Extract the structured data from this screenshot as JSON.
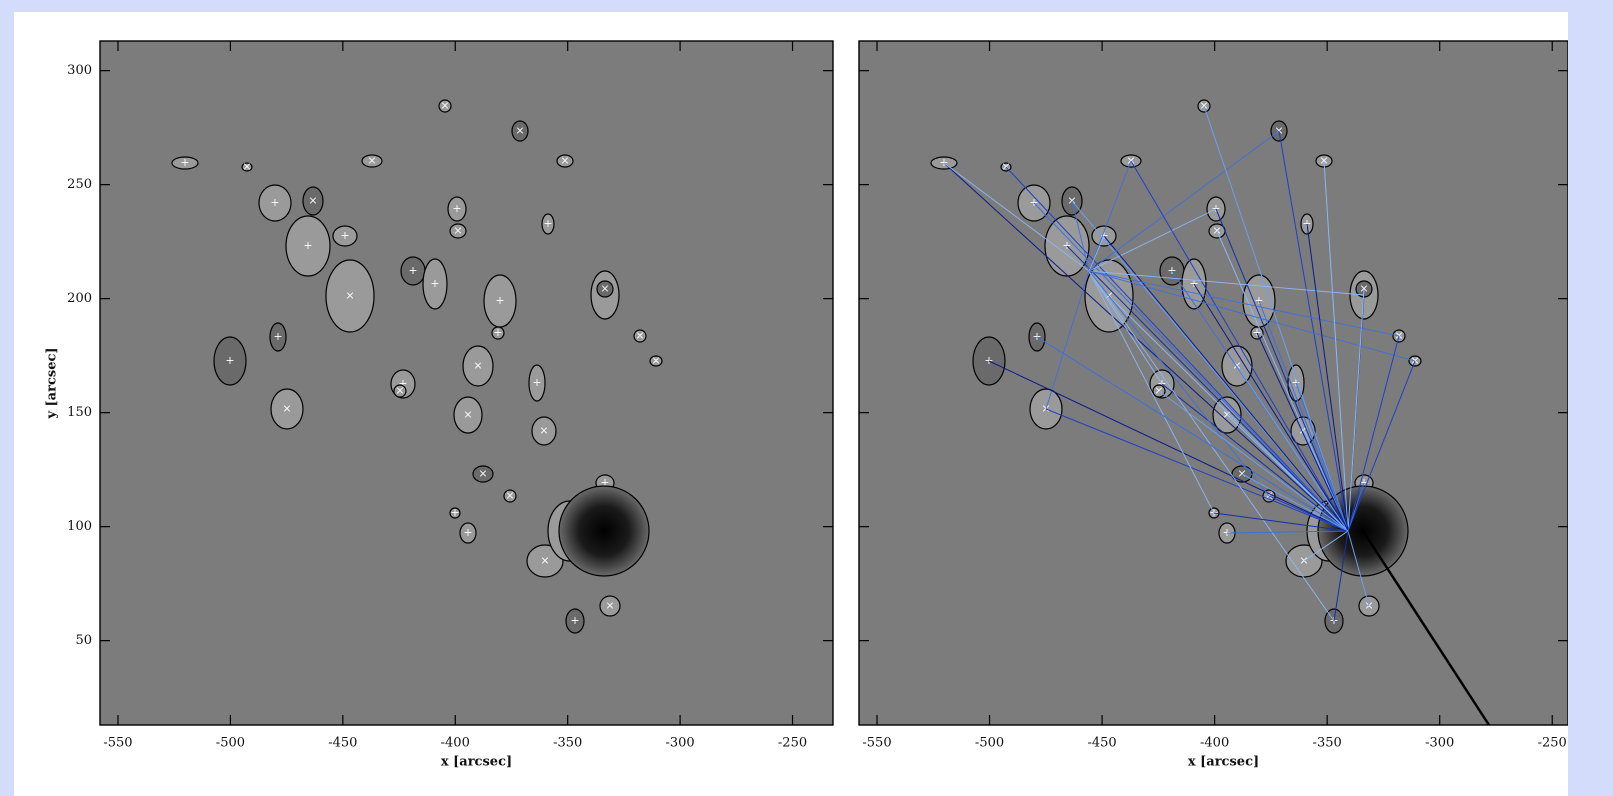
{
  "chart_data": [
    {
      "type": "image",
      "xlabel": "x [arcsec]",
      "ylabel": "y [arcsec]",
      "xlim": [
        -558,
        -232
      ],
      "xticks": [
        -550,
        -500,
        -450,
        -400,
        -350,
        -300,
        -250
      ],
      "ylim": [
        13,
        313
      ],
      "yticks": [
        50,
        100,
        150,
        200,
        250,
        300
      ],
      "ytick_labels": true
    },
    {
      "type": "image",
      "xlabel": "x [arcsec]",
      "xlim": [
        -558,
        -243
      ],
      "xticks": [
        -550,
        -500,
        -450,
        -400,
        -350,
        -300,
        -250
      ],
      "ylim": [
        13,
        313
      ],
      "yticks": [
        50,
        100,
        150,
        200,
        250,
        300
      ],
      "ytick_labels": false
    }
  ]
}
